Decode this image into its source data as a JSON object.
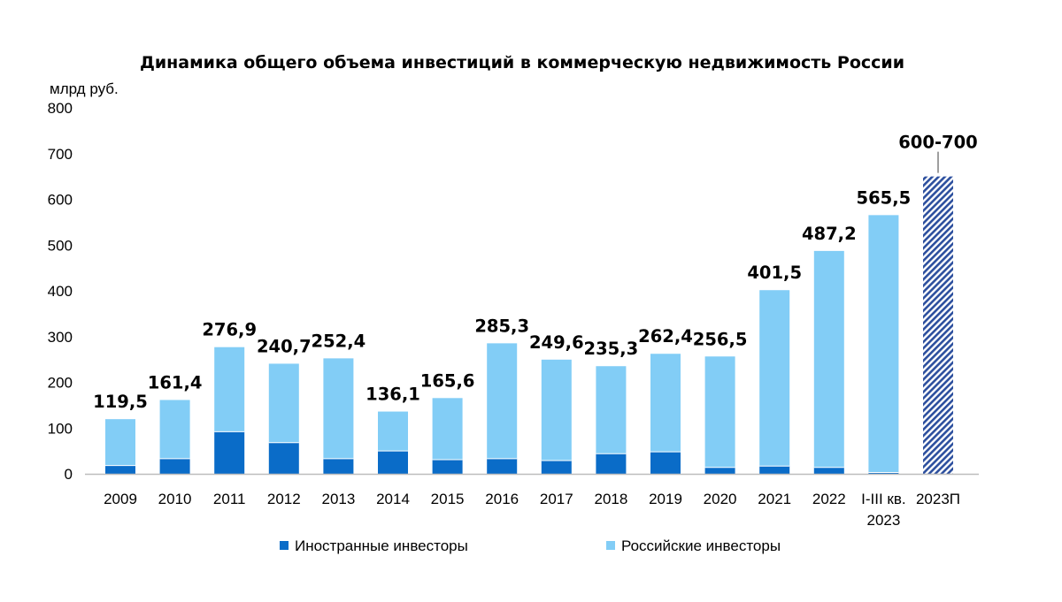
{
  "chart_data": {
    "type": "bar",
    "stacked": true,
    "title": "Динамика общего объема инвестиций в коммерческую недвижимость России",
    "ylabel": "млрд руб.",
    "ylim": [
      0,
      800
    ],
    "yticks": [
      0,
      100,
      200,
      300,
      400,
      500,
      600,
      700,
      800
    ],
    "grid": false,
    "legend_position": "bottom",
    "categories": [
      [
        "2009"
      ],
      [
        "2010"
      ],
      [
        "2011"
      ],
      [
        "2012"
      ],
      [
        "2013"
      ],
      [
        "2014"
      ],
      [
        "2015"
      ],
      [
        "2016"
      ],
      [
        "2017"
      ],
      [
        "2018"
      ],
      [
        "2019"
      ],
      [
        "2020"
      ],
      [
        "2021"
      ],
      [
        "2022"
      ],
      [
        "I-III кв.",
        "2023"
      ],
      [
        "2023П"
      ]
    ],
    "series": [
      {
        "name": "Иностранные инвесторы",
        "color": "#0a6cc8",
        "values": [
          18,
          33,
          92,
          68,
          33,
          50,
          31,
          33,
          29,
          44,
          48,
          14,
          17,
          14,
          3,
          null
        ]
      },
      {
        "name": "Российские инвесторы",
        "color": "#82cdf6",
        "values": [
          101.5,
          128.4,
          184.9,
          172.7,
          219.4,
          86.1,
          134.6,
          252.3,
          220.6,
          191.3,
          214.4,
          242.5,
          384.5,
          473.2,
          562.5,
          null
        ]
      }
    ],
    "forecast": {
      "category_index": 15,
      "value": 650,
      "label": "600-700",
      "color": "#2c4f9e",
      "pattern": "diagonal-hatch"
    },
    "data_labels": [
      "119,5",
      "161,4",
      "276,9",
      "240,7",
      "252,4",
      "136,1",
      "165,6",
      "285,3",
      "249,6",
      "235,3",
      "262,4",
      "256,5",
      "401,5",
      "487,2",
      "565,5",
      "600-700"
    ]
  }
}
